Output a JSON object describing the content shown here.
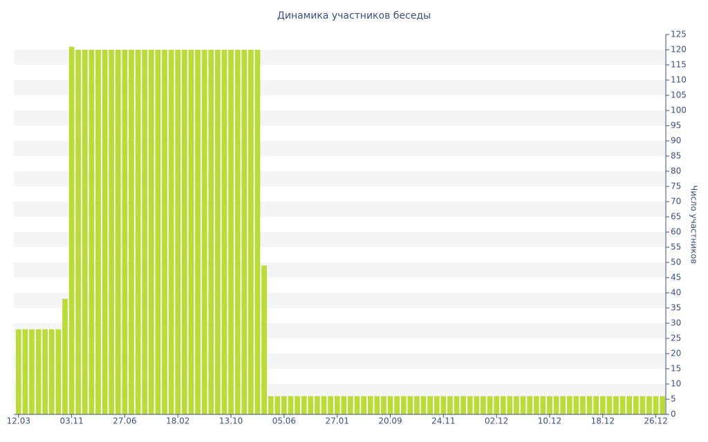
{
  "chart_data": {
    "type": "bar",
    "title": "Динамика участников беседы",
    "y_label": "Число участников",
    "categories": [
      "12.03",
      null,
      null,
      null,
      null,
      null,
      null,
      null,
      "03.11",
      null,
      null,
      null,
      null,
      null,
      null,
      null,
      "27.06",
      null,
      null,
      null,
      null,
      null,
      null,
      null,
      "18.02",
      null,
      null,
      null,
      null,
      null,
      null,
      null,
      "13.10",
      null,
      null,
      null,
      null,
      null,
      null,
      null,
      "05.06",
      null,
      null,
      null,
      null,
      null,
      null,
      null,
      "27.01",
      null,
      null,
      null,
      null,
      null,
      null,
      null,
      "20.09",
      null,
      null,
      null,
      null,
      null,
      null,
      null,
      "24.11",
      null,
      null,
      null,
      null,
      null,
      null,
      null,
      "02.12",
      null,
      null,
      null,
      null,
      null,
      null,
      null,
      "10.12",
      null,
      null,
      null,
      null,
      null,
      null,
      null,
      "18.12",
      null,
      null,
      null,
      null,
      null,
      null,
      null,
      "26.12",
      null
    ],
    "values": [
      28,
      28,
      28,
      28,
      28,
      28,
      28,
      38,
      121,
      120,
      120,
      120,
      120,
      120,
      120,
      120,
      120,
      120,
      120,
      120,
      120,
      120,
      120,
      120,
      120,
      120,
      120,
      120,
      120,
      120,
      120,
      120,
      120,
      120,
      120,
      120,
      120,
      49,
      6,
      6,
      6,
      6,
      6,
      6,
      6,
      6,
      6,
      6,
      6,
      6,
      6,
      6,
      6,
      6,
      6,
      6,
      6,
      6,
      6,
      6,
      6,
      6,
      6,
      6,
      6,
      6,
      6,
      6,
      6,
      6,
      6,
      6,
      6,
      6,
      6,
      6,
      6,
      6,
      6,
      6,
      6,
      6,
      6,
      6,
      6,
      6,
      6,
      6,
      6,
      6,
      6,
      6,
      6,
      6,
      6,
      6,
      6,
      6
    ],
    "color": "#b9dc36",
    "ylim": [
      0,
      125
    ],
    "yticks": [
      0,
      5,
      10,
      15,
      20,
      25,
      30,
      35,
      40,
      45,
      50,
      55,
      60,
      65,
      70,
      75,
      80,
      85,
      90,
      95,
      100,
      105,
      110,
      115,
      120,
      125
    ],
    "y_axis_side": "right",
    "stripes": true
  }
}
